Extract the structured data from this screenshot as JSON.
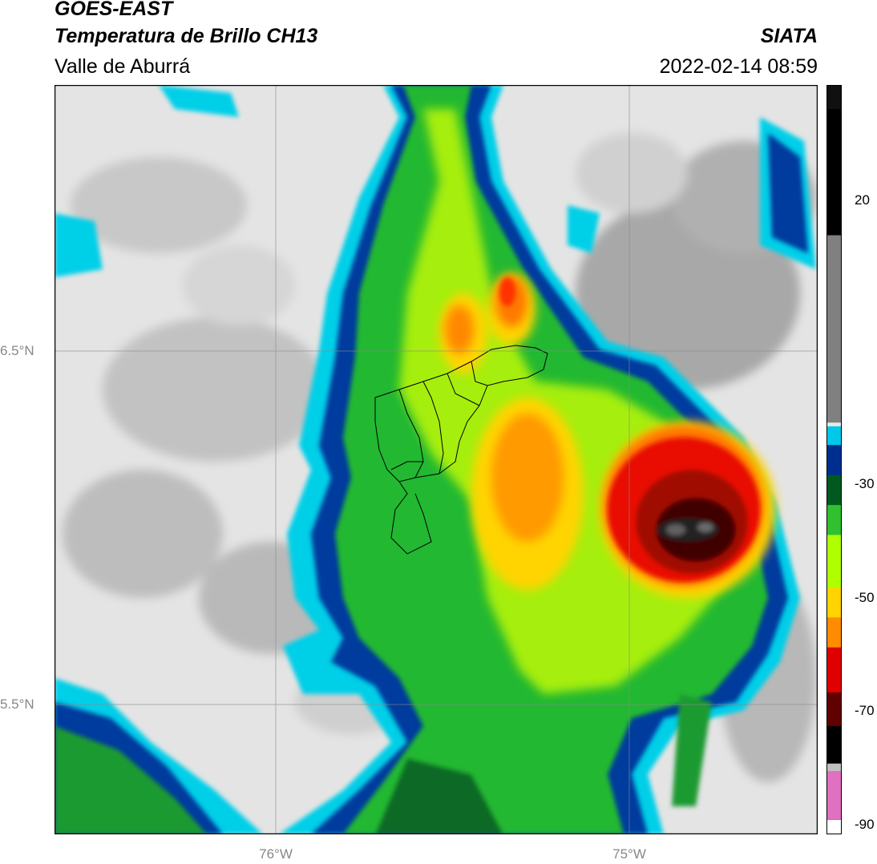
{
  "header": {
    "title_line1": "GOES-EAST",
    "title_line2": "Temperatura de Brillo CH13",
    "subtitle": "Valle de Aburrá",
    "agency": "SIATA",
    "datetime": "2022-02-14 08:59"
  },
  "map": {
    "lat_labels": [
      "6.5°N",
      "5.5°N"
    ],
    "lon_labels": [
      "76°W",
      "75°W"
    ],
    "features": [
      "storm-core-east",
      "storm-band-central",
      "warm-cloud-north-band",
      "valle-de-aburra-municipal-boundaries"
    ]
  },
  "colorbar": {
    "tick_labels": [
      "20",
      "-30",
      "-50",
      "-70",
      "-90"
    ],
    "colors": [
      "#ffffff",
      "#a000a0",
      "#e070c0",
      "#c0c0c0",
      "#000000",
      "#600000",
      "#e00000",
      "#ff8c00",
      "#ffd400",
      "#b0ff00",
      "#30c030",
      "#005a20",
      "#002e90",
      "#00c8e8",
      "#e8e8e8",
      "#808080",
      "#000000"
    ]
  }
}
